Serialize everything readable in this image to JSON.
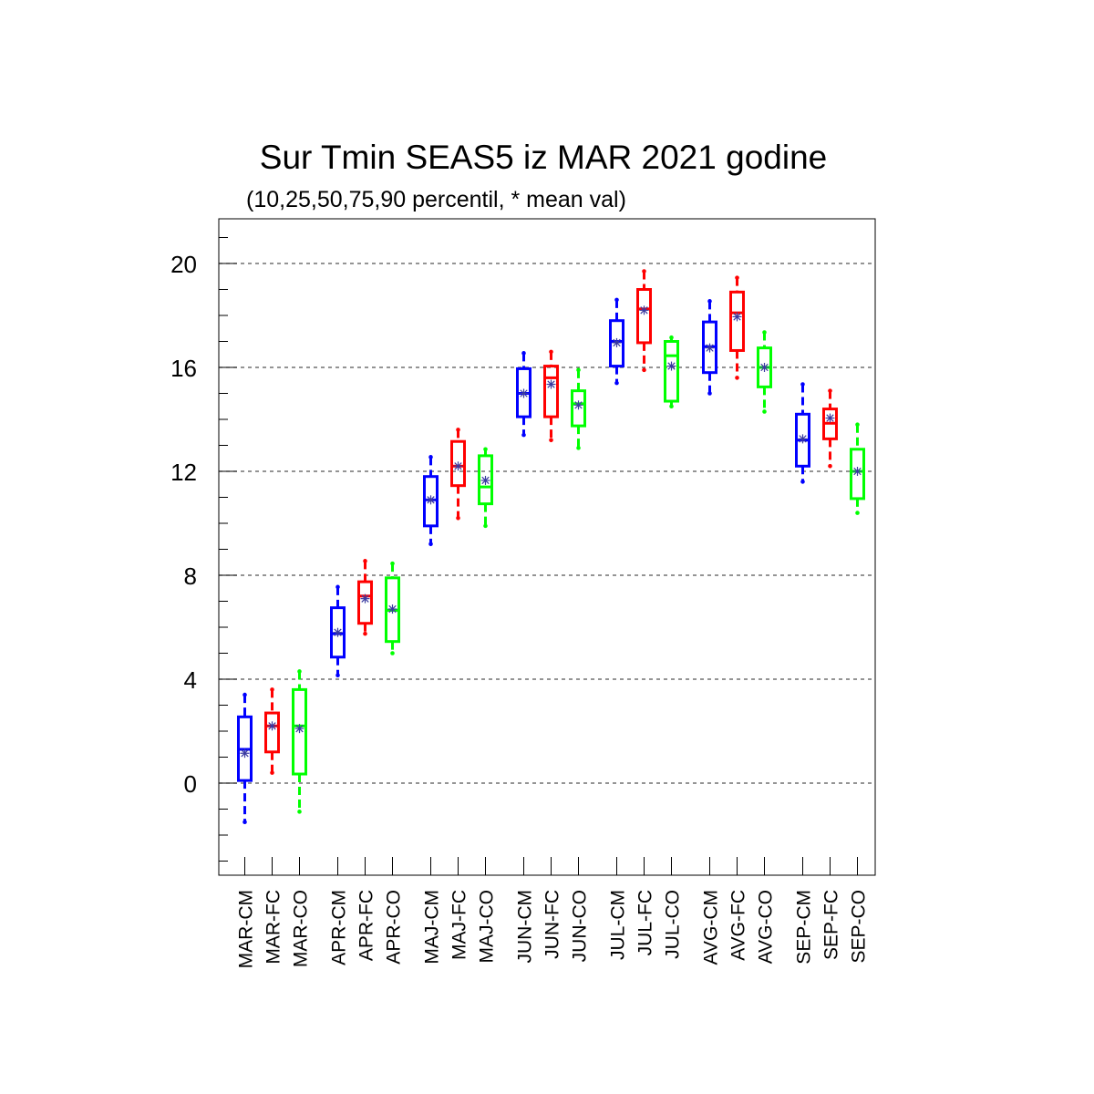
{
  "chart_data": {
    "type": "box",
    "title": "Sur Tmin SEAS5 iz MAR 2021 godine",
    "subtitle": "(10,25,50,75,90 percentil, * mean val)",
    "xlabel": "",
    "ylabel": "",
    "ylim": [
      -3.5,
      21.8
    ],
    "yticks": [
      0,
      4,
      8,
      12,
      16,
      20
    ],
    "ytick_labels": [
      "0",
      "4",
      "8",
      "12",
      "16",
      "20"
    ],
    "grid": "horizontal dashed",
    "colors": {
      "CM": "#0000ff",
      "FC": "#ff0000",
      "CO": "#00ff00",
      "mean_marker": "#3a3aa0"
    },
    "categories": [
      "MAR-CM",
      "MAR-FC",
      "MAR-CO",
      "APR-CM",
      "APR-FC",
      "APR-CO",
      "MAJ-CM",
      "MAJ-FC",
      "MAJ-CO",
      "JUN-CM",
      "JUN-FC",
      "JUN-CO",
      "JUL-CM",
      "JUL-FC",
      "JUL-CO",
      "AVG-CM",
      "AVG-FC",
      "AVG-CO",
      "SEP-CM",
      "SEP-FC",
      "SEP-CO"
    ],
    "boxes": [
      {
        "label": "MAR-CM",
        "group": "CM",
        "p10": -1.5,
        "p25": 0.1,
        "p50": 1.3,
        "p75": 2.55,
        "p90": 3.4,
        "mean": 1.15
      },
      {
        "label": "MAR-FC",
        "group": "FC",
        "p10": 0.4,
        "p25": 1.2,
        "p50": 2.2,
        "p75": 2.7,
        "p90": 3.6,
        "mean": 2.2
      },
      {
        "label": "MAR-CO",
        "group": "CO",
        "p10": -1.1,
        "p25": 0.35,
        "p50": 2.2,
        "p75": 3.6,
        "p90": 4.3,
        "mean": 2.1
      },
      {
        "label": "APR-CM",
        "group": "CM",
        "p10": 4.15,
        "p25": 4.85,
        "p50": 5.75,
        "p75": 6.75,
        "p90": 7.55,
        "mean": 5.8
      },
      {
        "label": "APR-FC",
        "group": "FC",
        "p10": 5.75,
        "p25": 6.15,
        "p50": 7.2,
        "p75": 7.75,
        "p90": 8.55,
        "mean": 7.1
      },
      {
        "label": "APR-CO",
        "group": "CO",
        "p10": 5.0,
        "p25": 5.45,
        "p50": 6.65,
        "p75": 7.9,
        "p90": 8.45,
        "mean": 6.7
      },
      {
        "label": "MAJ-CM",
        "group": "CM",
        "p10": 9.2,
        "p25": 9.9,
        "p50": 10.9,
        "p75": 11.8,
        "p90": 12.55,
        "mean": 10.9
      },
      {
        "label": "MAJ-FC",
        "group": "FC",
        "p10": 10.2,
        "p25": 11.45,
        "p50": 12.2,
        "p75": 13.15,
        "p90": 13.6,
        "mean": 12.2
      },
      {
        "label": "MAJ-CO",
        "group": "CO",
        "p10": 9.9,
        "p25": 10.75,
        "p50": 11.4,
        "p75": 12.6,
        "p90": 12.85,
        "mean": 11.65
      },
      {
        "label": "JUN-CM",
        "group": "CM",
        "p10": 13.4,
        "p25": 14.1,
        "p50": 15.0,
        "p75": 15.95,
        "p90": 16.55,
        "mean": 15.0
      },
      {
        "label": "JUN-FC",
        "group": "FC",
        "p10": 13.2,
        "p25": 14.1,
        "p50": 15.6,
        "p75": 16.05,
        "p90": 16.6,
        "mean": 15.35
      },
      {
        "label": "JUN-CO",
        "group": "CO",
        "p10": 12.9,
        "p25": 13.75,
        "p50": 14.6,
        "p75": 15.1,
        "p90": 15.9,
        "mean": 14.55
      },
      {
        "label": "JUL-CM",
        "group": "CM",
        "p10": 15.4,
        "p25": 16.05,
        "p50": 17.0,
        "p75": 17.8,
        "p90": 18.6,
        "mean": 16.95
      },
      {
        "label": "JUL-FC",
        "group": "FC",
        "p10": 15.9,
        "p25": 16.95,
        "p50": 18.25,
        "p75": 19.0,
        "p90": 19.7,
        "mean": 18.2
      },
      {
        "label": "JUL-CO",
        "group": "CO",
        "p10": 14.5,
        "p25": 14.7,
        "p50": 16.45,
        "p75": 17.0,
        "p90": 17.15,
        "mean": 16.05
      },
      {
        "label": "AVG-CM",
        "group": "CM",
        "p10": 15.0,
        "p25": 15.8,
        "p50": 16.8,
        "p75": 17.75,
        "p90": 18.55,
        "mean": 16.75
      },
      {
        "label": "AVG-FC",
        "group": "FC",
        "p10": 15.6,
        "p25": 16.65,
        "p50": 18.1,
        "p75": 18.9,
        "p90": 19.45,
        "mean": 17.95
      },
      {
        "label": "AVG-CO",
        "group": "CO",
        "p10": 14.3,
        "p25": 15.25,
        "p50": 16.0,
        "p75": 16.75,
        "p90": 17.35,
        "mean": 16.0
      },
      {
        "label": "SEP-CM",
        "group": "CM",
        "p10": 11.6,
        "p25": 12.2,
        "p50": 13.2,
        "p75": 14.2,
        "p90": 15.35,
        "mean": 13.25
      },
      {
        "label": "SEP-FC",
        "group": "FC",
        "p10": 12.2,
        "p25": 13.25,
        "p50": 13.85,
        "p75": 14.4,
        "p90": 15.1,
        "mean": 14.05
      },
      {
        "label": "SEP-CO",
        "group": "CO",
        "p10": 10.4,
        "p25": 10.95,
        "p50": 12.0,
        "p75": 12.85,
        "p90": 13.8,
        "mean": 12.0
      }
    ]
  }
}
